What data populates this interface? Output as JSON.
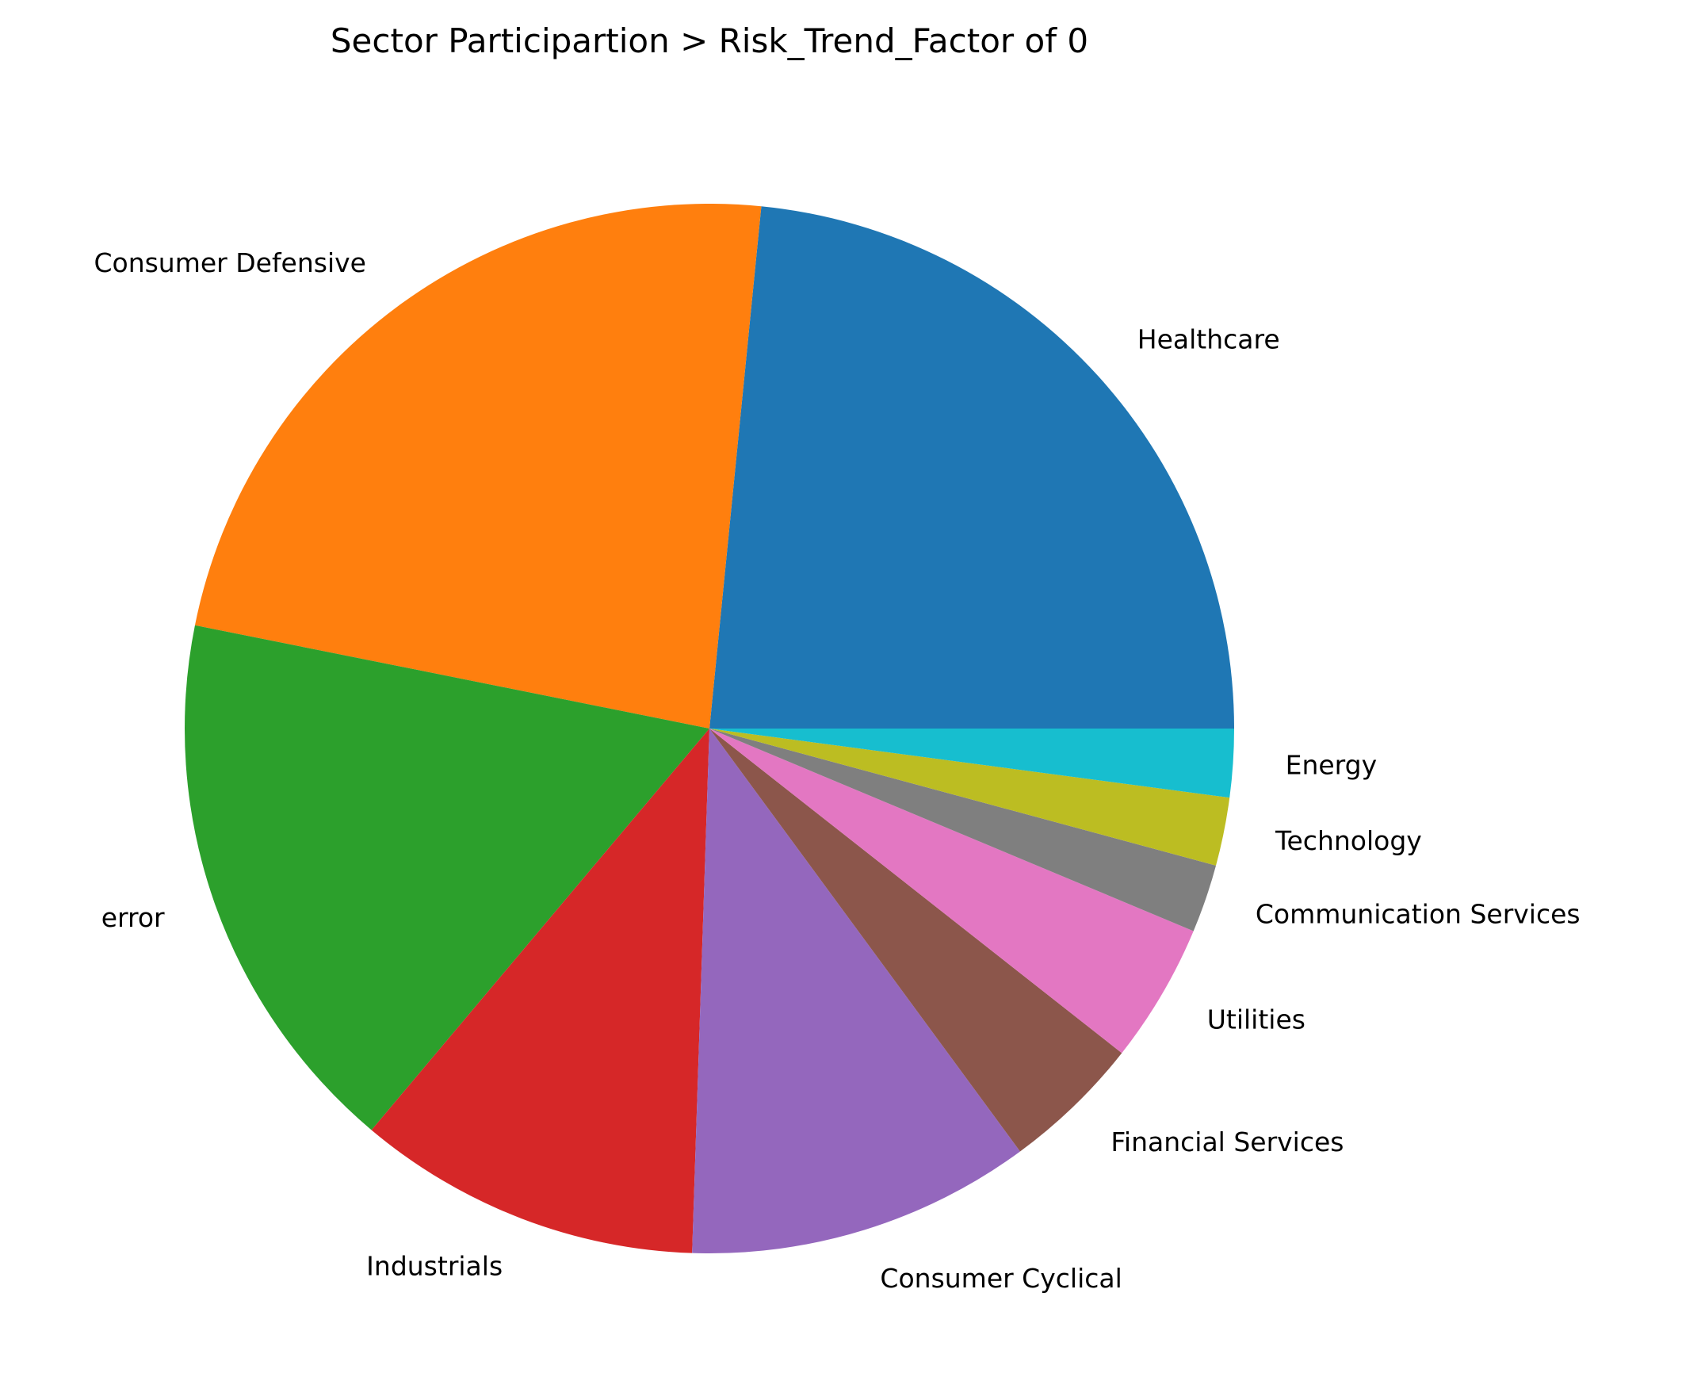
{
  "chart_data": {
    "type": "pie",
    "title": "Sector Participartion > Risk_Trend_Factor of 0",
    "start_angle_deg": 0,
    "direction": "counterclockwise",
    "slices": [
      {
        "label": "Healthcare",
        "percent": 23.4,
        "color": "#1f77b4"
      },
      {
        "label": "Consumer Defensive",
        "percent": 23.4,
        "color": "#ff7f0e"
      },
      {
        "label": "error",
        "percent": 17.0,
        "color": "#2ca02c"
      },
      {
        "label": "Industrials",
        "percent": 10.6,
        "color": "#d62728"
      },
      {
        "label": "Consumer Cyclical",
        "percent": 10.6,
        "color": "#9467bd"
      },
      {
        "label": "Financial Services",
        "percent": 4.3,
        "color": "#8c564b"
      },
      {
        "label": "Utilities",
        "percent": 4.3,
        "color": "#e377c2"
      },
      {
        "label": "Communication Services",
        "percent": 2.1,
        "color": "#7f7f7f"
      },
      {
        "label": "Technology",
        "percent": 2.1,
        "color": "#bcbd22"
      },
      {
        "label": "Energy",
        "percent": 2.1,
        "color": "#17becf"
      }
    ]
  }
}
